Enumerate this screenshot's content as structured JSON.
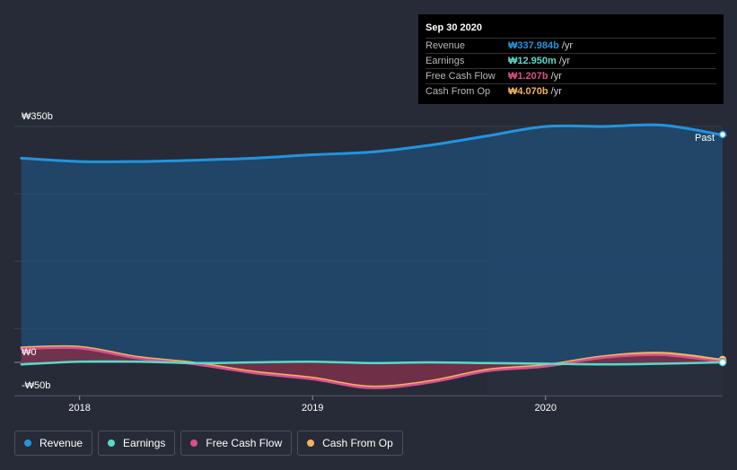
{
  "colors": {
    "revenue": "#2394df",
    "earnings": "#5ad9c9",
    "fcf": "#d84f8e",
    "cfo": "#f0b45f"
  },
  "tooltip": {
    "date": "Sep 30 2020",
    "rows": [
      {
        "name": "Revenue",
        "value": "₩337.984b",
        "unit": "/yr",
        "color": "#2394df"
      },
      {
        "name": "Earnings",
        "value": "₩12.950m",
        "unit": "/yr",
        "color": "#5ad9c9"
      },
      {
        "name": "Free Cash Flow",
        "value": "₩1.207b",
        "unit": "/yr",
        "color": "#d84f8e"
      },
      {
        "name": "Cash From Op",
        "value": "₩4.070b",
        "unit": "/yr",
        "color": "#f0b45f"
      }
    ]
  },
  "legend": [
    {
      "label": "Revenue",
      "color": "#2394df"
    },
    {
      "label": "Earnings",
      "color": "#5ad9c9"
    },
    {
      "label": "Free Cash Flow",
      "color": "#d84f8e"
    },
    {
      "label": "Cash From Op",
      "color": "#f0b45f"
    }
  ],
  "chart_data": {
    "type": "area",
    "title": "",
    "unit": "₩ billions",
    "ylim": [
      -50,
      350
    ],
    "y_tick_labels": [
      "₩350b",
      "₩0",
      "-₩50b"
    ],
    "y_ticks": [
      350,
      0,
      -50
    ],
    "xlim": [
      2017.72,
      2020.76
    ],
    "x_ticks": [
      2018,
      2019,
      2020
    ],
    "x_tick_labels": [
      "2018",
      "2019",
      "2020"
    ],
    "past_label": "Past",
    "highlight_from": 2019.75,
    "series": [
      {
        "name": "Revenue",
        "x": [
          2017.75,
          2018.0,
          2018.25,
          2018.5,
          2018.75,
          2019.0,
          2019.25,
          2019.5,
          2019.75,
          2020.0,
          2020.25,
          2020.5,
          2020.75
        ],
        "values": [
          303,
          298,
          298,
          300,
          303,
          308,
          312,
          322,
          336,
          350,
          350,
          352,
          338
        ]
      },
      {
        "name": "Earnings",
        "x": [
          2017.75,
          2018.0,
          2018.25,
          2018.5,
          2018.75,
          2019.0,
          2019.25,
          2019.5,
          2019.75,
          2020.0,
          2020.25,
          2020.5,
          2020.75
        ],
        "values": [
          -3,
          1,
          1,
          -1,
          0,
          1,
          -1,
          0,
          -1,
          -2,
          -3,
          -2,
          0.01
        ]
      },
      {
        "name": "Free Cash Flow",
        "x": [
          2017.75,
          2018.0,
          2018.25,
          2018.5,
          2018.75,
          2019.0,
          2019.25,
          2019.5,
          2019.75,
          2020.0,
          2020.25,
          2020.5,
          2020.75
        ],
        "values": [
          20,
          21,
          6,
          -3,
          -16,
          -25,
          -38,
          -30,
          -13,
          -6,
          7,
          11,
          1.2
        ]
      },
      {
        "name": "Cash From Op",
        "x": [
          2017.75,
          2018.0,
          2018.25,
          2018.5,
          2018.75,
          2019.0,
          2019.25,
          2019.5,
          2019.75,
          2020.0,
          2020.25,
          2020.5,
          2020.75
        ],
        "values": [
          22,
          23,
          8,
          -1,
          -14,
          -23,
          -36,
          -28,
          -11,
          -4,
          9,
          14,
          4.1
        ]
      }
    ]
  }
}
